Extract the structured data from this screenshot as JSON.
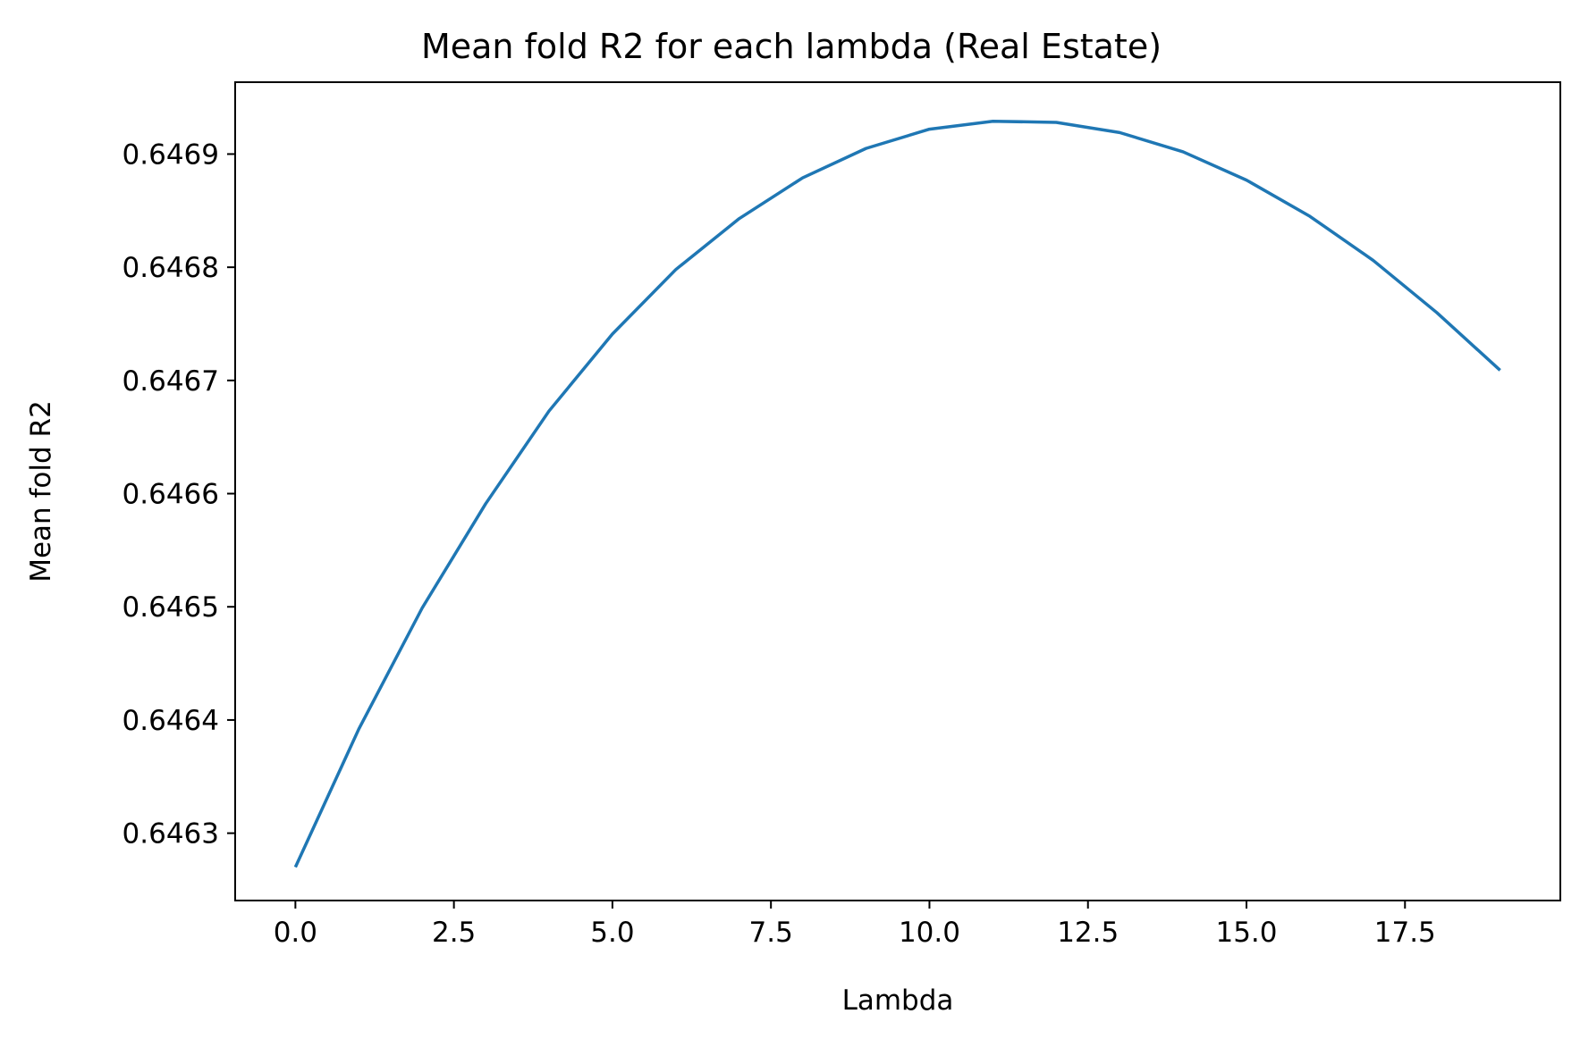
{
  "chart_data": {
    "type": "line",
    "title": "Mean fold R2 for each lambda (Real Estate)",
    "xlabel": "Lambda",
    "ylabel": "Mean fold R2",
    "xlim": [
      -0.95,
      19.95
    ],
    "ylim": [
      0.6462405,
      0.6469635
    ],
    "xticks": [
      0.0,
      2.5,
      5.0,
      7.5,
      10.0,
      12.5,
      15.0,
      17.5
    ],
    "xtick_labels": [
      "0.0",
      "2.5",
      "5.0",
      "7.5",
      "10.0",
      "12.5",
      "15.0",
      "17.5"
    ],
    "yticks": [
      0.6463,
      0.6464,
      0.6465,
      0.6466,
      0.6467,
      0.6468,
      0.6469
    ],
    "ytick_labels": [
      "0.6463",
      "0.6464",
      "0.6465",
      "0.6466",
      "0.6467",
      "0.6468",
      "0.6469"
    ],
    "grid": false,
    "series": [
      {
        "color": "#1f77b4",
        "x": [
          0,
          1,
          2,
          3,
          4,
          5,
          6,
          7,
          8,
          9,
          10,
          11,
          12,
          13,
          14,
          15,
          16,
          17,
          18,
          19
        ],
        "y": [
          0.64627,
          0.646392,
          0.646499,
          0.646591,
          0.646673,
          0.646741,
          0.646798,
          0.646843,
          0.646879,
          0.646905,
          0.646922,
          0.646929,
          0.646928,
          0.646919,
          0.646902,
          0.646877,
          0.646845,
          0.646806,
          0.64676,
          0.646709
        ]
      }
    ]
  }
}
